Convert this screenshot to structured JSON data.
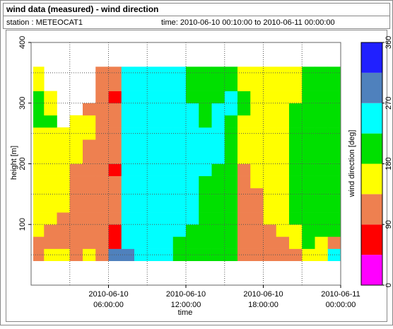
{
  "header": {
    "title": "wind data (measured) - wind direction",
    "station": "station : METEOCAT1",
    "time": "time: 2010-06-10 00:10:00 to 2010-06-11 00:00:00"
  },
  "chart_data": {
    "type": "heatmap",
    "xlabel": "time",
    "ylabel": "height [m]",
    "colorbar_label": "wind direction [deg]",
    "xlim": [
      "2010-06-10 00:00:00",
      "2010-06-11 00:00:00"
    ],
    "xticks": [
      "2010-06-10 06:00:00",
      "2010-06-10 12:00:00",
      "2010-06-10 18:00:00",
      "2010-06-11 00:00:00"
    ],
    "xminorticks": [
      "2010-06-10 03:00:00",
      "2010-06-10 09:00:00",
      "2010-06-10 15:00:00",
      "2010-06-10 21:00:00"
    ],
    "ylim": [
      0,
      400
    ],
    "yticks": [
      100,
      200,
      300,
      400
    ],
    "yminorticks": [
      50,
      150,
      250,
      350
    ],
    "grid": true,
    "color_bounds": [
      0,
      45,
      90,
      135,
      180,
      225,
      270,
      315,
      360
    ],
    "colors": [
      "#ff00ff",
      "#ff0000",
      "#ee8050",
      "#ffff00",
      "#00e000",
      "#00ffff",
      "#4f81bd",
      "#2020ff"
    ],
    "cticks": [
      0,
      90,
      180,
      270,
      360
    ],
    "x_edges": [
      "2010-06-10 00:10:00",
      "2010-06-10 01:00:00",
      "2010-06-10 02:00:00",
      "2010-06-10 03:00:00",
      "2010-06-10 04:00:00",
      "2010-06-10 05:00:00",
      "2010-06-10 06:00:00",
      "2010-06-10 07:00:00",
      "2010-06-10 08:00:00",
      "2010-06-10 09:00:00",
      "2010-06-10 10:00:00",
      "2010-06-10 11:00:00",
      "2010-06-10 12:00:00",
      "2010-06-10 13:00:00",
      "2010-06-10 14:00:00",
      "2010-06-10 15:00:00",
      "2010-06-10 16:00:00",
      "2010-06-10 17:00:00",
      "2010-06-10 18:00:00",
      "2010-06-10 19:00:00",
      "2010-06-10 20:00:00",
      "2010-06-10 21:00:00",
      "2010-06-10 22:00:00",
      "2010-06-10 23:00:00",
      "2010-06-11 00:00:00"
    ],
    "y_edges": [
      40,
      60,
      80,
      100,
      120,
      140,
      160,
      180,
      200,
      220,
      240,
      260,
      280,
      300,
      320,
      340,
      360
    ],
    "values": [
      [
        112,
        112,
        157,
        157,
        157,
        157,
        157,
        157,
        157,
        157,
        157,
        202,
        202,
        202,
        157,
        157
      ],
      [
        157,
        112,
        112,
        157,
        157,
        157,
        157,
        157,
        157,
        157,
        157,
        202,
        157,
        157,
        null,
        null
      ],
      [
        157,
        112,
        112,
        112,
        157,
        157,
        157,
        157,
        157,
        157,
        157,
        null,
        null,
        null,
        null,
        null
      ],
      [
        112,
        112,
        112,
        112,
        112,
        112,
        112,
        112,
        157,
        157,
        157,
        157,
        null,
        null,
        null,
        null
      ],
      [
        157,
        112,
        112,
        112,
        112,
        112,
        112,
        112,
        112,
        112,
        157,
        157,
        112,
        null,
        null,
        null
      ],
      [
        112,
        112,
        112,
        112,
        112,
        112,
        112,
        112,
        112,
        112,
        112,
        112,
        112,
        112,
        112,
        112
      ],
      [
        292,
        67,
        67,
        112,
        112,
        112,
        112,
        67,
        112,
        112,
        112,
        112,
        112,
        67,
        112,
        112
      ],
      [
        292,
        247,
        247,
        247,
        247,
        247,
        247,
        247,
        247,
        247,
        247,
        247,
        247,
        247,
        247,
        247
      ],
      [
        247,
        247,
        247,
        247,
        247,
        247,
        247,
        247,
        247,
        247,
        247,
        247,
        247,
        247,
        247,
        247
      ],
      [
        247,
        247,
        247,
        247,
        247,
        247,
        247,
        247,
        247,
        247,
        247,
        247,
        247,
        247,
        247,
        247
      ],
      [
        247,
        247,
        247,
        247,
        247,
        247,
        247,
        247,
        247,
        247,
        247,
        247,
        247,
        247,
        247,
        247
      ],
      [
        202,
        202,
        247,
        247,
        247,
        247,
        247,
        247,
        247,
        247,
        247,
        247,
        247,
        247,
        247,
        247
      ],
      [
        202,
        202,
        202,
        247,
        247,
        247,
        247,
        247,
        247,
        247,
        247,
        247,
        247,
        202,
        202,
        202
      ],
      [
        202,
        202,
        202,
        202,
        202,
        202,
        202,
        247,
        247,
        247,
        247,
        202,
        202,
        202,
        202,
        202
      ],
      [
        202,
        202,
        202,
        202,
        202,
        202,
        202,
        202,
        247,
        247,
        247,
        247,
        247,
        202,
        202,
        202
      ],
      [
        202,
        202,
        202,
        202,
        202,
        202,
        202,
        202,
        202,
        202,
        202,
        202,
        247,
        247,
        202,
        202
      ],
      [
        112,
        112,
        112,
        112,
        112,
        112,
        112,
        112,
        157,
        157,
        157,
        157,
        202,
        202,
        157,
        157
      ],
      [
        112,
        112,
        112,
        112,
        112,
        112,
        157,
        157,
        157,
        157,
        157,
        157,
        157,
        157,
        157,
        157
      ],
      [
        112,
        112,
        112,
        157,
        157,
        157,
        157,
        157,
        157,
        157,
        157,
        157,
        157,
        157,
        157,
        157
      ],
      [
        112,
        112,
        157,
        157,
        157,
        157,
        157,
        157,
        157,
        157,
        157,
        157,
        157,
        157,
        157,
        157
      ],
      [
        112,
        157,
        157,
        202,
        202,
        202,
        202,
        202,
        202,
        202,
        202,
        202,
        202,
        157,
        157,
        157
      ],
      [
        157,
        202,
        202,
        202,
        202,
        202,
        202,
        202,
        202,
        202,
        202,
        202,
        202,
        202,
        202,
        202
      ],
      [
        157,
        157,
        202,
        202,
        202,
        202,
        202,
        202,
        202,
        202,
        202,
        202,
        202,
        202,
        202,
        202
      ],
      [
        247,
        112,
        202,
        202,
        202,
        202,
        202,
        202,
        202,
        202,
        202,
        202,
        202,
        202,
        202,
        202
      ]
    ]
  }
}
